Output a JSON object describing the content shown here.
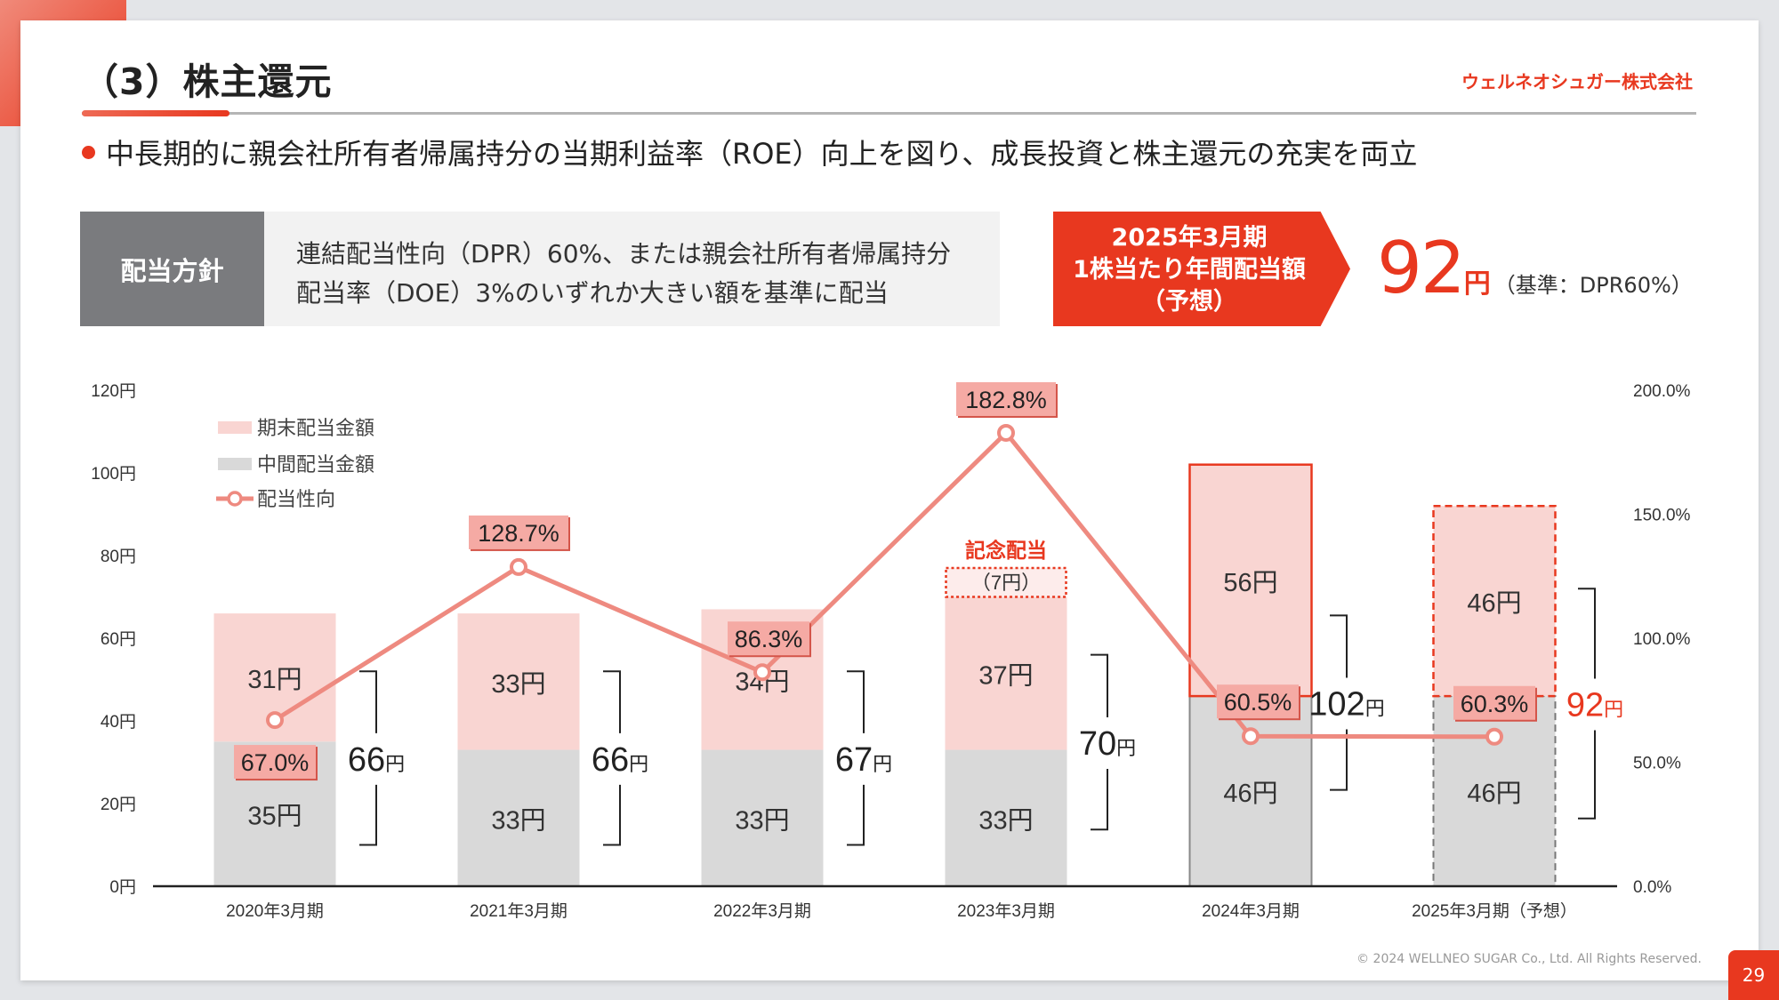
{
  "header": {
    "title": "（3）株主還元",
    "logo_text": "ウェルネオシュガー株式会社",
    "bullet": "中長期的に親会社所有者帰属持分の当期利益率（ROE）向上を図り、成長投資と株主還元の充実を両立"
  },
  "policy": {
    "label": "配当方針",
    "line1": "連結配当性向（DPR）60%、または親会社所有者帰属持分",
    "line2": "配当率（DOE）3%のいずれか大きい額を基準に配当"
  },
  "forecast": {
    "line1": "2025年3月期",
    "line2": "1株当たり年間配当額",
    "line3": "（予想）",
    "value": "92",
    "unit": "円",
    "basis": "（基準：DPR60%）"
  },
  "chart_data": {
    "type": "bar",
    "stacked": true,
    "categories": [
      "2020年3月期",
      "2021年3月期",
      "2022年3月期",
      "2023年3月期",
      "2024年3月期",
      "2025年3月期（予想）"
    ],
    "unit": "円",
    "series": [
      {
        "name": "中間配当金額",
        "values": [
          35,
          33,
          33,
          33,
          46,
          46
        ],
        "color": "#d9d9d9"
      },
      {
        "name": "期末配当金額",
        "values": [
          31,
          33,
          34,
          37,
          56,
          46
        ],
        "color": "#f9d5d2"
      }
    ],
    "line_series": {
      "name": "配当性向",
      "type": "line",
      "axis": "right",
      "values": [
        67.0,
        128.7,
        86.3,
        182.8,
        60.5,
        60.3
      ],
      "labels": [
        "67.0%",
        "128.7%",
        "86.3%",
        "182.8%",
        "60.5%",
        "60.3%"
      ],
      "color": "#ee8a80"
    },
    "totals": [
      "66",
      "66",
      "67",
      "70",
      "102",
      "92"
    ],
    "commemorative": {
      "category_index": 3,
      "title": "記念配当",
      "label": "（7円）",
      "value": 7
    },
    "y_left": {
      "range": [
        0,
        120
      ],
      "ticks": [
        "0円",
        "20円",
        "40円",
        "60円",
        "80円",
        "100円",
        "120円"
      ]
    },
    "y_right": {
      "range": [
        0,
        200
      ],
      "ticks": [
        "0.0%",
        "50.0%",
        "100.0%",
        "150.0%",
        "200.0%"
      ]
    },
    "legend": {
      "placement": "top-left",
      "items": [
        "期末配当金額",
        "中間配当金額",
        "配当性向"
      ]
    },
    "accent": "#e8381f",
    "grid": false
  },
  "footer": {
    "copyright": "© 2024 WELLNEO SUGAR Co., Ltd. All Rights Reserved.",
    "page_number": "29"
  }
}
